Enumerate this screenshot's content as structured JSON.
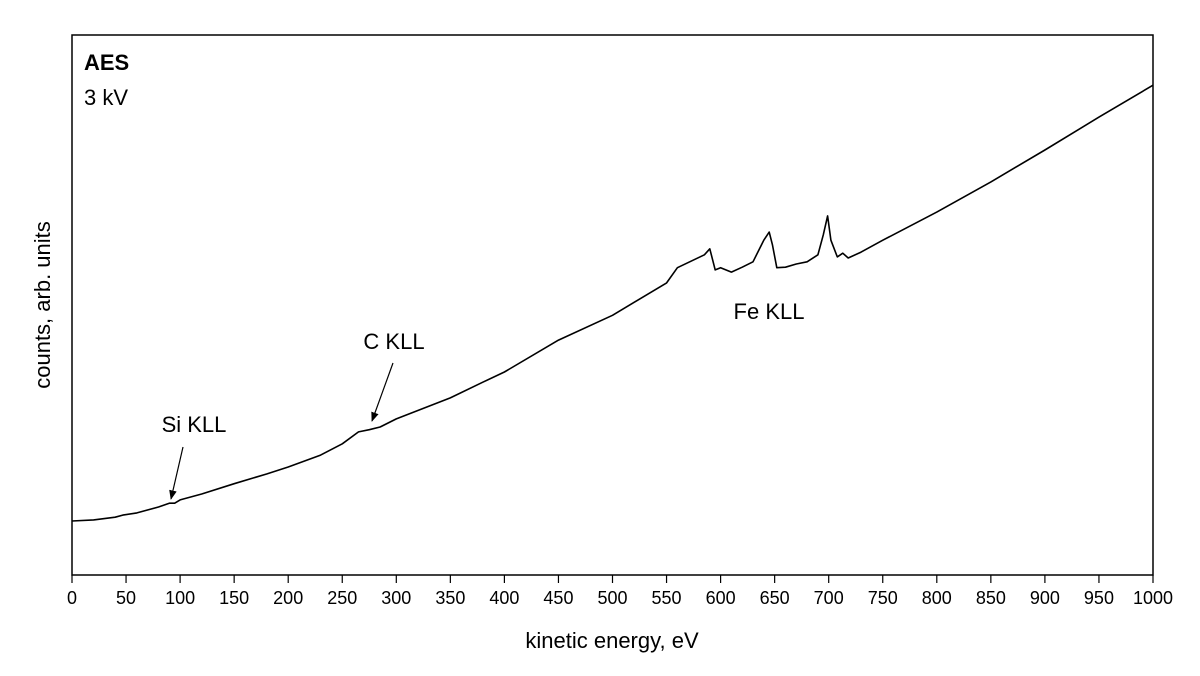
{
  "chart_data": {
    "type": "line",
    "xlabel": "kinetic energy, eV",
    "ylabel": "counts, arb. units",
    "annotations": [
      "AES",
      "3 kV",
      "Si KLL",
      "C KLL",
      "Fe KLL"
    ],
    "xlim": [
      0,
      1000
    ],
    "xticks": [
      0,
      50,
      100,
      150,
      200,
      250,
      300,
      350,
      400,
      450,
      500,
      550,
      600,
      650,
      700,
      750,
      800,
      850,
      900,
      950,
      1000
    ],
    "ylim": [
      0,
      100
    ],
    "x": [
      0,
      20,
      40,
      47,
      60,
      80,
      90,
      95,
      100,
      120,
      150,
      180,
      200,
      230,
      250,
      265,
      275,
      285,
      300,
      350,
      380,
      400,
      450,
      500,
      550,
      560,
      585,
      590,
      595,
      600,
      610,
      620,
      630,
      640,
      645,
      648,
      652,
      660,
      670,
      680,
      690,
      695,
      699,
      702,
      708,
      713,
      718,
      730,
      750,
      800,
      850,
      900,
      950,
      1000
    ],
    "series": [
      {
        "color": "#000000",
        "values": [
          10.0,
          10.2,
          10.7,
          11.1,
          11.5,
          12.6,
          13.3,
          13.3,
          13.9,
          15.0,
          16.9,
          18.7,
          20.0,
          22.2,
          24.3,
          26.5,
          26.9,
          27.4,
          28.9,
          32.8,
          35.7,
          37.6,
          43.5,
          48.1,
          54.1,
          56.9,
          59.3,
          60.4,
          56.5,
          56.9,
          56.1,
          57.0,
          58.0,
          62.0,
          63.5,
          61.1,
          56.9,
          57.0,
          57.6,
          58.0,
          59.3,
          63.0,
          66.5,
          62.0,
          58.9,
          59.6,
          58.7,
          59.8,
          62.0,
          67.2,
          72.8,
          78.7,
          84.8,
          90.7
        ]
      }
    ]
  }
}
